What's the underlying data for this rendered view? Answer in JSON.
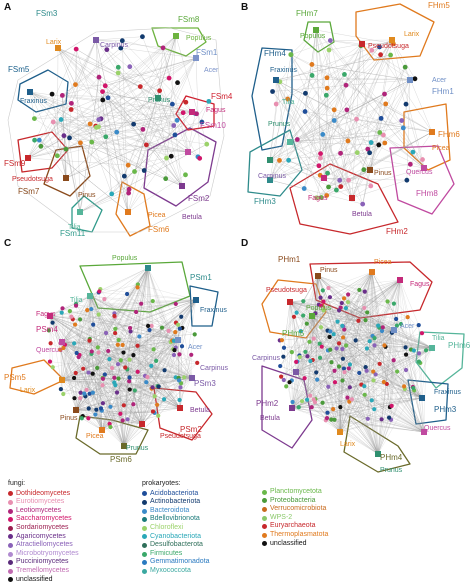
{
  "panels": [
    {
      "letter": "A",
      "hubs": [
        {
          "name": "Carpinus",
          "labels": [
            {
              "text": "FSm3",
              "color": "#2e8b8b"
            },
            {
              "text": "Carpinus",
              "color": "#7b5aa6"
            }
          ]
        },
        {
          "name": "Populus",
          "labels": [
            {
              "text": "FSm8",
              "color": "#5aa83a"
            },
            {
              "text": "Populus",
              "color": "#6db33f"
            }
          ]
        },
        {
          "name": "Larix",
          "labels": [
            {
              "text": "Larix",
              "color": "#e08a1e"
            }
          ]
        },
        {
          "name": "Acer",
          "labels": [
            {
              "text": "FSm1",
              "color": "#6f8fc6"
            },
            {
              "text": "Acer",
              "color": "#7c93c9"
            }
          ]
        },
        {
          "name": "Fraxinus",
          "labels": [
            {
              "text": "FSm5",
              "color": "#1a5f8a"
            },
            {
              "text": "Fraxinus",
              "color": "#1f5f8b"
            }
          ]
        },
        {
          "name": "Prunus",
          "labels": [
            {
              "text": "Prunus",
              "color": "#2f8f6f"
            }
          ]
        },
        {
          "name": "Fagus",
          "labels": [
            {
              "text": "FSm4",
              "color": "#d0202f"
            },
            {
              "text": "Fagus",
              "color": "#c42a7a"
            }
          ]
        },
        {
          "name": "Pseudotsuga",
          "labels": [
            {
              "text": "FSm9",
              "color": "#c7282c"
            },
            {
              "text": "Pseudotsuga",
              "color": "#c7282c"
            }
          ]
        },
        {
          "name": "Pinus",
          "labels": [
            {
              "text": "FSm7",
              "color": "#8a4a1c"
            },
            {
              "text": "Pinus",
              "color": "#8a4a1c"
            }
          ]
        },
        {
          "name": "Quercus",
          "labels": [
            {
              "text": "FSm10",
              "color": "#c04aa0"
            }
          ]
        },
        {
          "name": "Betula",
          "labels": [
            {
              "text": "FSm2",
              "color": "#7d3a8f"
            },
            {
              "text": "Betula",
              "color": "#7d3a8f"
            }
          ]
        },
        {
          "name": "Tilia",
          "labels": [
            {
              "text": "FSm11",
              "color": "#2f9a8a"
            },
            {
              "text": "Tilia",
              "color": "#55b59a"
            }
          ]
        },
        {
          "name": "Picea",
          "labels": [
            {
              "text": "FSm6",
              "color": "#e07a1e"
            },
            {
              "text": "Picea",
              "color": "#e07a1e"
            }
          ]
        }
      ]
    },
    {
      "letter": "B",
      "hubs": [
        {
          "name": "Populus",
          "labels": [
            {
              "text": "FHm7",
              "color": "#5aa83a"
            },
            {
              "text": "Populus",
              "color": "#5aa83a"
            }
          ]
        },
        {
          "name": "Pseudotsuga",
          "labels": [
            {
              "text": "Pseudotsuga",
              "color": "#c7282c"
            }
          ]
        },
        {
          "name": "Larix",
          "labels": [
            {
              "text": "FHm5",
              "color": "#e07a1e"
            },
            {
              "text": "Larix",
              "color": "#e08a1e"
            }
          ]
        },
        {
          "name": "Fraxinus",
          "labels": [
            {
              "text": "FHm4",
              "color": "#1f5f8b"
            },
            {
              "text": "Fraxinus",
              "color": "#1f5f8b"
            }
          ]
        },
        {
          "name": "Acer",
          "labels": [
            {
              "text": "Acer",
              "color": "#6f8fc6"
            },
            {
              "text": "FHm1",
              "color": "#6f8fc6"
            }
          ]
        },
        {
          "name": "Tilia",
          "labels": [
            {
              "text": "Tilia",
              "color": "#55b59a"
            }
          ]
        },
        {
          "name": "Picea",
          "labels": [
            {
              "text": "FHm6",
              "color": "#e07a1e"
            },
            {
              "text": "Picea",
              "color": "#e07a1e"
            }
          ]
        },
        {
          "name": "Prunus",
          "labels": [
            {
              "text": "Prunus",
              "color": "#2f8f6f"
            }
          ]
        },
        {
          "name": "Quercus",
          "labels": [
            {
              "text": "Quercus",
              "color": "#c04aa0"
            },
            {
              "text": "FHm8",
              "color": "#c04aa0"
            }
          ]
        },
        {
          "name": "Carpinus",
          "labels": [
            {
              "text": "Carpinus",
              "color": "#7b5aa6"
            },
            {
              "text": "FHm3",
              "color": "#2e8b8b"
            }
          ]
        },
        {
          "name": "Fagus",
          "labels": [
            {
              "text": "Fagus",
              "color": "#c42a7a"
            }
          ]
        },
        {
          "name": "Pinus",
          "labels": [
            {
              "text": "Pinus",
              "color": "#8a4a1c"
            }
          ]
        },
        {
          "name": "Betula",
          "labels": [
            {
              "text": "Betula",
              "color": "#7d3a8f"
            },
            {
              "text": "FHm2",
              "color": "#c7282c"
            }
          ]
        }
      ]
    },
    {
      "letter": "C",
      "hubs": [
        {
          "name": "Populus",
          "labels": [
            {
              "text": "Populus",
              "color": "#5aa83a"
            },
            {
              "text": "PSm1",
              "color": "#2e8b8b"
            }
          ]
        },
        {
          "name": "Tilia",
          "labels": [
            {
              "text": "Tilia",
              "color": "#55b59a"
            }
          ]
        },
        {
          "name": "Fraxinus",
          "labels": [
            {
              "text": "Fraxinus",
              "color": "#1f5f8b"
            }
          ]
        },
        {
          "name": "Fagus",
          "labels": [
            {
              "text": "Fagus",
              "color": "#c42a7a"
            },
            {
              "text": "PSm4",
              "color": "#c42a7a"
            }
          ]
        },
        {
          "name": "Acer",
          "labels": [
            {
              "text": "Acer",
              "color": "#6f8fc6"
            }
          ]
        },
        {
          "name": "Quercus",
          "labels": [
            {
              "text": "Quercus",
              "color": "#c04aa0"
            }
          ]
        },
        {
          "name": "Larix",
          "labels": [
            {
              "text": "PSm5",
              "color": "#e07a1e"
            },
            {
              "text": "Larix",
              "color": "#e08a1e"
            }
          ]
        },
        {
          "name": "Carpinus",
          "labels": [
            {
              "text": "Carpinus",
              "color": "#7b5aa6"
            },
            {
              "text": "PSm3",
              "color": "#7b5aa6"
            }
          ]
        },
        {
          "name": "Pinus",
          "labels": [
            {
              "text": "Pinus",
              "color": "#8a4a1c"
            }
          ]
        },
        {
          "name": "Betula",
          "labels": [
            {
              "text": "Betula",
              "color": "#7d3a8f"
            },
            {
              "text": "PSm2",
              "color": "#c7282c"
            }
          ]
        },
        {
          "name": "Pseudotsuga",
          "labels": [
            {
              "text": "Pseudotsuga",
              "color": "#c7282c"
            }
          ]
        },
        {
          "name": "Picea",
          "labels": [
            {
              "text": "Picea",
              "color": "#e07a1e"
            }
          ]
        },
        {
          "name": "Prunus",
          "labels": [
            {
              "text": "Prunus",
              "color": "#2f8f6f"
            },
            {
              "text": "PSm6",
              "color": "#6a6a2a"
            }
          ]
        }
      ]
    },
    {
      "letter": "D",
      "hubs": [
        {
          "name": "Pinus",
          "labels": [
            {
              "text": "PHm1",
              "color": "#8a4a1c"
            },
            {
              "text": "Pinus",
              "color": "#8a4a1c"
            }
          ]
        },
        {
          "name": "Picea",
          "labels": [
            {
              "text": "Picea",
              "color": "#e07a1e"
            }
          ]
        },
        {
          "name": "Fagus",
          "labels": [
            {
              "text": "Fagus",
              "color": "#c42a7a"
            }
          ]
        },
        {
          "name": "Pseudotsuga",
          "labels": [
            {
              "text": "Pseudotsuga",
              "color": "#c7282c"
            }
          ]
        },
        {
          "name": "Populus",
          "labels": [
            {
              "text": "Populus",
              "color": "#5aa83a"
            },
            {
              "text": "PHm5",
              "color": "#5aa83a"
            }
          ]
        },
        {
          "name": "Tilia",
          "labels": [
            {
              "text": "Tilia",
              "color": "#55b59a"
            },
            {
              "text": "PHm6",
              "color": "#55b59a"
            }
          ]
        },
        {
          "name": "Acer",
          "labels": [
            {
              "text": "Acer",
              "color": "#6f8fc6"
            }
          ]
        },
        {
          "name": "Carpinus",
          "labels": [
            {
              "text": "Carpinus",
              "color": "#7b5aa6"
            }
          ]
        },
        {
          "name": "Fraxinus",
          "labels": [
            {
              "text": "Fraxinus",
              "color": "#1f5f8b"
            },
            {
              "text": "PHm3",
              "color": "#1f5f8b"
            }
          ]
        },
        {
          "name": "Betula",
          "labels": [
            {
              "text": "PHm2",
              "color": "#7d3a8f"
            },
            {
              "text": "Betula",
              "color": "#7d3a8f"
            }
          ]
        },
        {
          "name": "Quercus",
          "labels": [
            {
              "text": "Quercus",
              "color": "#c04aa0"
            }
          ]
        },
        {
          "name": "Larix",
          "labels": [
            {
              "text": "Larix",
              "color": "#e08a1e"
            }
          ]
        },
        {
          "name": "Prunus",
          "labels": [
            {
              "text": "PHm4",
              "color": "#6a6a2a"
            },
            {
              "text": "Prunus",
              "color": "#2f8f6f"
            }
          ]
        }
      ]
    }
  ],
  "legend": {
    "fungi": {
      "title": "fungi:",
      "items": [
        {
          "label": "Dothideomycetes",
          "color": "#c7282c"
        },
        {
          "label": "Eurotiomycetes",
          "color": "#e88fb0"
        },
        {
          "label": "Leotiomycetes",
          "color": "#b0247a"
        },
        {
          "label": "Saccharomycetes",
          "color": "#d1156a"
        },
        {
          "label": "Sordariomycetes",
          "color": "#9b1d4f"
        },
        {
          "label": "Agaricomycetes",
          "color": "#6a2f8a"
        },
        {
          "label": "Atractiellomycetes",
          "color": "#8a62b8"
        },
        {
          "label": "Microbotryomycetes",
          "color": "#b08ad0"
        },
        {
          "label": "Pucciniomycetes",
          "color": "#5a2a7a"
        },
        {
          "label": "Tremellomycetes",
          "color": "#c06ab0"
        },
        {
          "label": "unclassified",
          "color": "#111111"
        }
      ]
    },
    "prokaryotes": {
      "title": "prokaryotes:",
      "col1": [
        {
          "label": "Acidobacteriota",
          "color": "#1f4e9a"
        },
        {
          "label": "Actinobacteriota",
          "color": "#123a6e"
        },
        {
          "label": "Bacteroidota",
          "color": "#3a8ac8"
        },
        {
          "label": "Bdellovibrionota",
          "color": "#1a7a7a"
        },
        {
          "label": "Chloroflexi",
          "color": "#9bd26a"
        },
        {
          "label": "Cyanobacteriota",
          "color": "#2aa8b8"
        },
        {
          "label": "Desulfobacterota",
          "color": "#2f6f5a"
        },
        {
          "label": "Firmicutes",
          "color": "#3aa86a"
        },
        {
          "label": "Gemmatimonadota",
          "color": "#2a7ac0"
        },
        {
          "label": "Myxococcota",
          "color": "#3aa8a0"
        }
      ],
      "col2": [
        {
          "label": "Planctomycetota",
          "color": "#6ab84a"
        },
        {
          "label": "Proteobacteria",
          "color": "#4a9a3a"
        },
        {
          "label": "Verrucomicrobiota",
          "color": "#c86a1e"
        },
        {
          "label": "WPS-2",
          "color": "#8ac86a"
        },
        {
          "label": "Euryarchaeota",
          "color": "#c7282c"
        },
        {
          "label": "Thermoplasmatota",
          "color": "#e07a1e"
        },
        {
          "label": "unclassified",
          "color": "#111111"
        }
      ]
    }
  }
}
